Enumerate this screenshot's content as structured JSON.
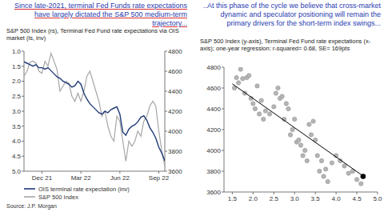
{
  "chart_data": [
    {
      "type": "line",
      "title": "Since late-2021, terminal Fed Funds rate expectations have largely dictated the S&P 500 medium-term trajectory...",
      "subtitle": "S&P 500 Index (rs), Terminal Fed Fund rate expectations via OIS market (ls, inv)",
      "annotations": [
        "Source: J.P. Morgan"
      ],
      "categories": [
        null,
        null,
        null,
        null,
        null,
        null,
        "Dec 21",
        null,
        null,
        null,
        null,
        null,
        null,
        null,
        null,
        null,
        null,
        null,
        null,
        "Mar 22",
        null,
        null,
        null,
        null,
        null,
        null,
        null,
        null,
        null,
        null,
        null,
        null,
        "Jun 22",
        null,
        null,
        null,
        null,
        null,
        null,
        null,
        null,
        null,
        null,
        null,
        null,
        "Sep 22",
        null,
        null
      ],
      "series": [
        {
          "name": "OIS terminal rate expectation (inv)",
          "color": "#1f3a78",
          "values": [
            1.35,
            1.4,
            1.45,
            1.5,
            1.45,
            1.55,
            1.55,
            1.6,
            1.55,
            1.65,
            1.75,
            1.85,
            1.9,
            2.0,
            2.05,
            2.1,
            2.2,
            2.15,
            2.0,
            2.1,
            2.4,
            2.6,
            2.75,
            2.85,
            2.95,
            3.05,
            3.1,
            3.0,
            3.05,
            2.95,
            2.9,
            2.85,
            3.1,
            3.7,
            3.8,
            3.6,
            3.5,
            3.45,
            3.35,
            3.2,
            3.15,
            3.3,
            3.55,
            3.7,
            3.9,
            4.2,
            4.4,
            4.65
          ]
        },
        {
          "name": "S&P 500 Index",
          "color": "#a6a6a6",
          "axis": "y2",
          "values": [
            4550,
            4600,
            4690,
            4700,
            4680,
            4600,
            4580,
            4700,
            4650,
            4780,
            4700,
            4620,
            4400,
            4450,
            4500,
            4480,
            4350,
            4300,
            4380,
            4300,
            4400,
            4550,
            4600,
            4500,
            4400,
            4300,
            4150,
            4200,
            4050,
            3950,
            3900,
            4150,
            4100,
            3900,
            3700,
            3900,
            3850,
            3900,
            4000,
            3950,
            4100,
            4150,
            4250,
            4300,
            4250,
            4000,
            3800,
            3650
          ]
        }
      ],
      "ylim": [
        5,
        1
      ],
      "yticks": [
        {
          "value": 1,
          "label": "1.0"
        },
        1.5,
        {
          "value": 2,
          "label": "2.0"
        },
        2.5,
        {
          "value": 3,
          "label": "3.0"
        },
        3.5,
        {
          "value": 4,
          "label": "4.0"
        },
        4.5,
        {
          "value": 5,
          "label": "5.0"
        }
      ],
      "y2lim": [
        3600,
        4800
      ],
      "y2ticks": [
        3600,
        3800,
        4000,
        4200,
        4400,
        4600,
        4800
      ],
      "legend": "bottom-left",
      "grid": false
    },
    {
      "type": "scatter",
      "title": "..At this phase of the cycle we believe that cross-market dynamic and speculator positioning will remain the primary drivers for the short-term index swings...",
      "subtitle": "S&P 500 Index (y-axis), Terminal Fed Fund rate expectations (x-axis); one-year regression: r-squared= 0.68, SE= 169pts",
      "x": [
        1.55,
        1.6,
        1.65,
        1.7,
        1.75,
        1.8,
        1.85,
        1.9,
        1.95,
        2.0,
        2.05,
        2.1,
        2.15,
        2.2,
        2.25,
        2.3,
        2.4,
        2.5,
        2.55,
        2.6,
        2.65,
        2.7,
        2.75,
        2.8,
        2.85,
        2.9,
        2.95,
        3.0,
        3.05,
        3.1,
        3.15,
        3.2,
        3.25,
        3.3,
        3.35,
        3.4,
        3.45,
        3.5,
        3.55,
        3.6,
        3.65,
        3.7,
        3.75,
        3.8,
        3.9,
        4.0,
        4.1,
        4.2,
        4.3,
        4.4,
        4.5,
        4.6
      ],
      "values": [
        4600,
        4700,
        4650,
        4780,
        4690,
        4550,
        4700,
        4720,
        4500,
        4450,
        4400,
        4620,
        4350,
        4480,
        4300,
        4380,
        4350,
        4420,
        4550,
        4600,
        4500,
        4520,
        4300,
        4450,
        4400,
        4150,
        4200,
        4300,
        4080,
        4100,
        4050,
        3950,
        4000,
        3900,
        4250,
        4150,
        4280,
        4100,
        3950,
        3800,
        3900,
        3750,
        3820,
        3700,
        3880,
        3950,
        3900,
        3850,
        3780,
        3800,
        3720,
        3680
      ],
      "color": "#b5b5b5",
      "regression_line": {
        "x": [
          1.5,
          4.7
        ],
        "values": [
          4640,
          3740
        ],
        "color": "#000000"
      },
      "latest_point": {
        "x": 4.65,
        "y": 3750,
        "color": "#000000"
      },
      "xlim": [
        1.3,
        5.0
      ],
      "xticks": [
        1.5,
        {
          "value": 2,
          "label": "2.0"
        },
        2.5,
        {
          "value": 3,
          "label": "3.0"
        },
        3.5,
        {
          "value": 4,
          "label": "4.0"
        },
        4.5,
        {
          "value": 5,
          "label": "5.0"
        }
      ],
      "ylim": [
        3600,
        4800
      ],
      "yticks": [
        3600,
        3800,
        4000,
        4200,
        4400,
        4600,
        4800
      ],
      "grid": false
    }
  ]
}
